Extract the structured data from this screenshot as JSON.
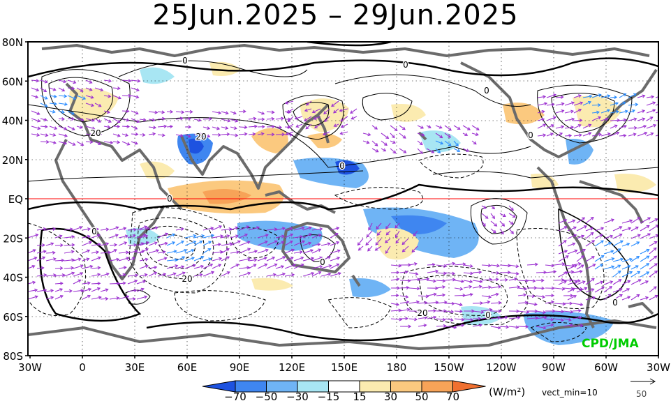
{
  "title": "25Jun.2025 – 29Jun.2025",
  "credit": "CPD/JMA",
  "credit_color": "#00cc00",
  "lat_labels": [
    "80N",
    "60N",
    "40N",
    "20N",
    "EQ",
    "20S",
    "40S",
    "60S",
    "80S"
  ],
  "lon_labels": [
    "30W",
    "0",
    "30E",
    "60E",
    "90E",
    "120E",
    "150E",
    "180",
    "150W",
    "120W",
    "90W",
    "60W",
    "30W"
  ],
  "colorbar": {
    "ticks": [
      "−70",
      "−50",
      "−30",
      "−15",
      "15",
      "30",
      "50",
      "70"
    ],
    "colors": [
      "#1d52e0",
      "#3f86f0",
      "#6fb4f5",
      "#a8e6f3",
      "#ffffff",
      "#fbebb0",
      "#fbc97f",
      "#f7a358",
      "#f07030"
    ],
    "unit": "(W/m²)",
    "vect_min_label": "vect_min=10",
    "ref_vector_value": "50"
  },
  "contour_labels": [
    "0",
    "20",
    "0",
    "0",
    "0",
    "0",
    "0",
    "20",
    "0",
    "0",
    "20",
    "20",
    "0",
    "0"
  ],
  "colors": {
    "coast": "#6b6b6b",
    "vector": "#9b30d0",
    "vector_strong": "#2a8cff",
    "equator": "#ff0000",
    "contour": "#000000"
  }
}
